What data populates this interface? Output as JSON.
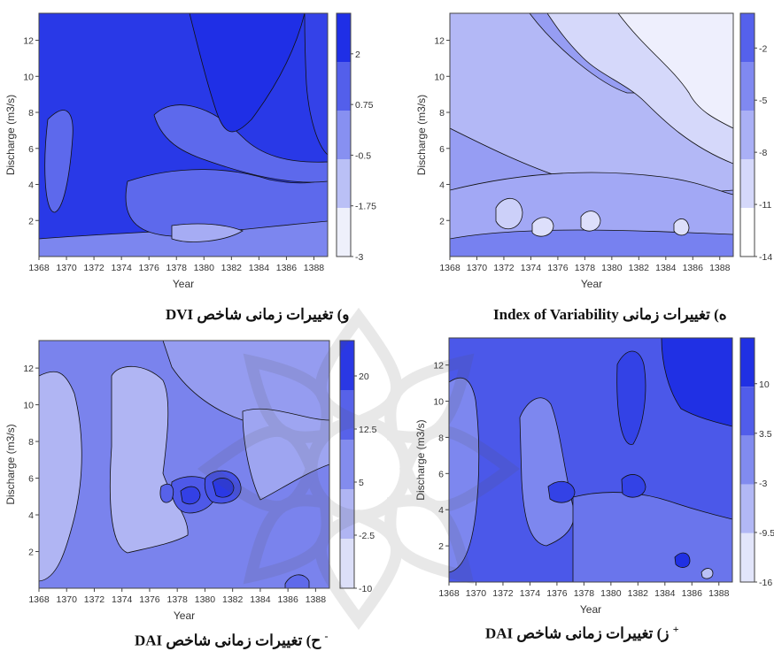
{
  "chart_data": [
    {
      "type": "heatmap",
      "title": "",
      "caption": "و) تغییرات زمانی شاخص DVI",
      "xlabel": "Year",
      "ylabel": "Discharge (m3/s)",
      "xlim": [
        1368,
        1389
      ],
      "ylim": [
        0,
        13.5
      ],
      "xticks": [
        "1368",
        "1370",
        "1372",
        "1374",
        "1376",
        "1378",
        "1380",
        "1382",
        "1384",
        "1386",
        "1388"
      ],
      "yticks": [
        "2",
        "4",
        "6",
        "8",
        "10",
        "12"
      ],
      "colorbar_ticks": [
        "2",
        "0.75",
        "-0.5",
        "-1.75",
        "-3"
      ],
      "colorbar_range": [
        -3,
        3
      ],
      "colors": {
        "high": "#1f2fe6",
        "low": "#eef0fb"
      }
    },
    {
      "type": "heatmap",
      "title": "",
      "caption": "ه) تغییرات زمانی Index of Variability",
      "xlabel": "Year",
      "ylabel": "Discharge (m3/s)",
      "xlim": [
        1368,
        1389
      ],
      "ylim": [
        0,
        13.5
      ],
      "xticks": [
        "1368",
        "1370",
        "1372",
        "1374",
        "1376",
        "1378",
        "1380",
        "1382",
        "1384",
        "1386",
        "1388"
      ],
      "yticks": [
        "2",
        "4",
        "6",
        "8",
        "10",
        "12"
      ],
      "colorbar_ticks": [
        "-2",
        "-5",
        "-8",
        "-11",
        "-14"
      ],
      "colorbar_range": [
        -14,
        0
      ],
      "colors": {
        "high": "#5561ec",
        "low": "#ffffff"
      }
    },
    {
      "type": "heatmap",
      "title": "",
      "caption": "ح) تغییرات زمانی شاخص DAI",
      "caption_sup": "-",
      "xlabel": "Year",
      "ylabel": "Discharge (m3/s)",
      "xlim": [
        1368,
        1389
      ],
      "ylim": [
        0,
        13.5
      ],
      "xticks": [
        "1368",
        "1370",
        "1372",
        "1374",
        "1376",
        "1378",
        "1380",
        "1382",
        "1384",
        "1386",
        "1388"
      ],
      "yticks": [
        "2",
        "4",
        "6",
        "8",
        "10",
        "12"
      ],
      "colorbar_ticks": [
        "20",
        "12.5",
        "5",
        "-2.5",
        "-10"
      ],
      "colorbar_range": [
        -10,
        25
      ],
      "colors": {
        "high": "#2a38e4",
        "low": "#dcdff8"
      }
    },
    {
      "type": "heatmap",
      "title": "",
      "caption": "ز) تغییرات زمانی شاخص DAI",
      "caption_sup": "+",
      "xlabel": "Year",
      "ylabel": "Discharge (m3/s)",
      "xlim": [
        1368,
        1389
      ],
      "ylim": [
        0,
        13.5
      ],
      "xticks": [
        "1368",
        "1370",
        "1372",
        "1374",
        "1376",
        "1378",
        "1380",
        "1382",
        "1384",
        "1386",
        "1388"
      ],
      "yticks": [
        "2",
        "4",
        "6",
        "8",
        "10",
        "12"
      ],
      "colorbar_ticks": [
        "10",
        "3.5",
        "-3",
        "-9.5",
        "-16"
      ],
      "colorbar_range": [
        -16,
        16
      ],
      "colors": {
        "high": "#2030e4",
        "low": "#e2e5fa"
      }
    }
  ]
}
